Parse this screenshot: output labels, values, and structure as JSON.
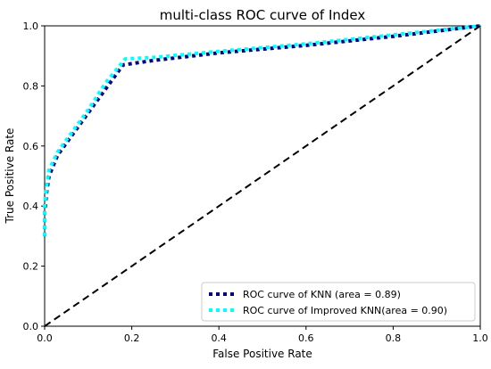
{
  "chart_data": {
    "type": "line",
    "title": "multi-class ROC curve of Index",
    "xlabel": "False Positive Rate",
    "ylabel": "True Positive Rate",
    "xlim": [
      0.0,
      1.0
    ],
    "ylim": [
      0.0,
      1.0
    ],
    "xticks": [
      0.0,
      0.2,
      0.4,
      0.6,
      0.8,
      1.0
    ],
    "yticks": [
      0.0,
      0.2,
      0.4,
      0.6,
      0.8,
      1.0
    ],
    "xtick_labels": [
      "0.0",
      "0.2",
      "0.4",
      "0.6",
      "0.8",
      "1.0"
    ],
    "ytick_labels": [
      "0.0",
      "0.2",
      "0.4",
      "0.6",
      "0.8",
      "1.0"
    ],
    "grid": false,
    "legend_position": "lower-right",
    "series": [
      {
        "name": "ROC curve of KNN (area = 0.89)",
        "color": "#000080",
        "style": "dotted",
        "x": [
          0.0,
          0.0,
          0.005,
          0.01,
          0.03,
          0.06,
          0.1,
          0.14,
          0.18,
          0.25,
          0.4,
          0.6,
          0.8,
          1.0
        ],
        "y": [
          0.3,
          0.38,
          0.45,
          0.5,
          0.57,
          0.63,
          0.71,
          0.79,
          0.87,
          0.885,
          0.91,
          0.935,
          0.965,
          1.0
        ]
      },
      {
        "name": "ROC curve of Improved KNN(area = 0.90)",
        "color": "#00FFFF",
        "style": "dotted",
        "x": [
          0.0,
          0.0,
          0.005,
          0.01,
          0.03,
          0.06,
          0.1,
          0.14,
          0.185,
          0.25,
          0.4,
          0.6,
          0.8,
          1.0
        ],
        "y": [
          0.3,
          0.4,
          0.47,
          0.52,
          0.58,
          0.64,
          0.72,
          0.81,
          0.89,
          0.895,
          0.915,
          0.94,
          0.97,
          1.0
        ]
      },
      {
        "name": "",
        "color": "#000000",
        "style": "dashed",
        "x": [
          0.0,
          1.0
        ],
        "y": [
          0.0,
          1.0
        ]
      }
    ]
  }
}
